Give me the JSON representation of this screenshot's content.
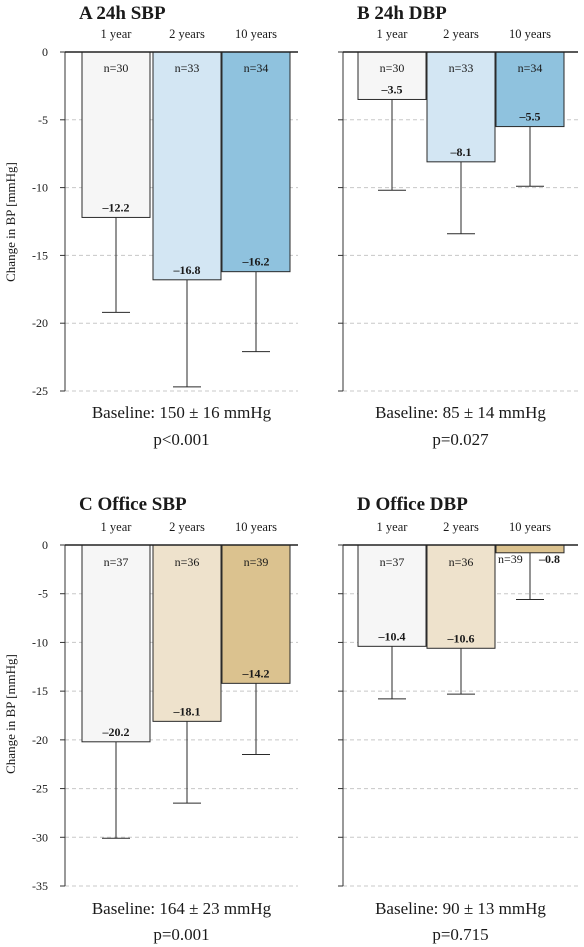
{
  "ylabel": "Change in BP [mmHg]",
  "categories": [
    "1 year",
    "2 years",
    "10 years"
  ],
  "chart_data": [
    {
      "type": "bar",
      "title": "A 24h SBP",
      "categories": [
        "1 year",
        "2 years",
        "10 years"
      ],
      "values": [
        -12.2,
        -16.8,
        -16.2
      ],
      "error_lower": [
        -19.2,
        -24.7,
        -22.1
      ],
      "n": [
        "n=30",
        "n=33",
        "n=34"
      ],
      "value_labels": [
        "–12.2",
        "–16.8",
        "–16.2"
      ],
      "colors": [
        "#f6f6f6",
        "#d3e6f3",
        "#8fc2de"
      ],
      "ylim": [
        -25,
        0
      ],
      "yticks": [
        0,
        -5,
        -10,
        -15,
        -20,
        -25
      ],
      "ytick_labels": [
        "0",
        "-5",
        "-10",
        "-15",
        "-20",
        "-25"
      ],
      "ylabel": "Change in BP [mmHg]",
      "show_ylabel": true,
      "grid": true,
      "baseline": "Baseline: 150 ± 16 mmHg",
      "pvalue": "p<0.001"
    },
    {
      "type": "bar",
      "title": "B 24h DBP",
      "categories": [
        "1 year",
        "2 years",
        "10 years"
      ],
      "values": [
        -3.5,
        -8.1,
        -5.5
      ],
      "error_lower": [
        -10.2,
        -13.4,
        -9.9
      ],
      "n": [
        "n=30",
        "n=33",
        "n=34"
      ],
      "value_labels": [
        "–3.5",
        "–8.1",
        "–5.5"
      ],
      "colors": [
        "#f6f6f6",
        "#d3e6f3",
        "#8fc2de"
      ],
      "ylim": [
        -25,
        0
      ],
      "yticks": [
        0,
        -5,
        -10,
        -15,
        -20,
        -25
      ],
      "ytick_labels": [
        "",
        "",
        "",
        "",
        "",
        ""
      ],
      "ylabel": "",
      "show_ylabel": false,
      "grid": true,
      "baseline": "Baseline: 85 ± 14 mmHg",
      "pvalue": "p=0.027"
    },
    {
      "type": "bar",
      "title": "C Office SBP",
      "categories": [
        "1 year",
        "2 years",
        "10 years"
      ],
      "values": [
        -20.2,
        -18.1,
        -14.2
      ],
      "error_lower": [
        -30.1,
        -26.5,
        -21.5
      ],
      "n": [
        "n=37",
        "n=36",
        "n=39"
      ],
      "value_labels": [
        "–20.2",
        "–18.1",
        "–14.2"
      ],
      "colors": [
        "#f6f6f6",
        "#eee2cc",
        "#dbc28f"
      ],
      "ylim": [
        -35,
        0
      ],
      "yticks": [
        0,
        -5,
        -10,
        -15,
        -20,
        -25,
        -30,
        -35
      ],
      "ytick_labels": [
        "0",
        "-5",
        "-10",
        "-15",
        "-20",
        "-25",
        "-30",
        "-35"
      ],
      "ylabel": "Change in BP [mmHg]",
      "show_ylabel": true,
      "grid": true,
      "baseline": "Baseline: 164 ± 23 mmHg",
      "pvalue": "p=0.001"
    },
    {
      "type": "bar",
      "title": "D Office DBP",
      "categories": [
        "1 year",
        "2 years",
        "10 years"
      ],
      "values": [
        -10.4,
        -10.6,
        -0.8
      ],
      "error_lower": [
        -15.8,
        -15.3,
        -5.6
      ],
      "n": [
        "n=37",
        "n=36",
        "n=39"
      ],
      "value_labels": [
        "–10.4",
        "–10.6",
        "–0.8"
      ],
      "colors": [
        "#f6f6f6",
        "#eee2cc",
        "#dbc28f"
      ],
      "ylim": [
        -35,
        0
      ],
      "yticks": [
        0,
        -5,
        -10,
        -15,
        -20,
        -25,
        -30,
        -35
      ],
      "ytick_labels": [
        "",
        "",
        "",
        "",
        "",
        "",
        "",
        ""
      ],
      "ylabel": "",
      "show_ylabel": false,
      "grid": true,
      "baseline": "Baseline: 90 ± 13 mmHg",
      "pvalue": "p=0.715"
    }
  ]
}
